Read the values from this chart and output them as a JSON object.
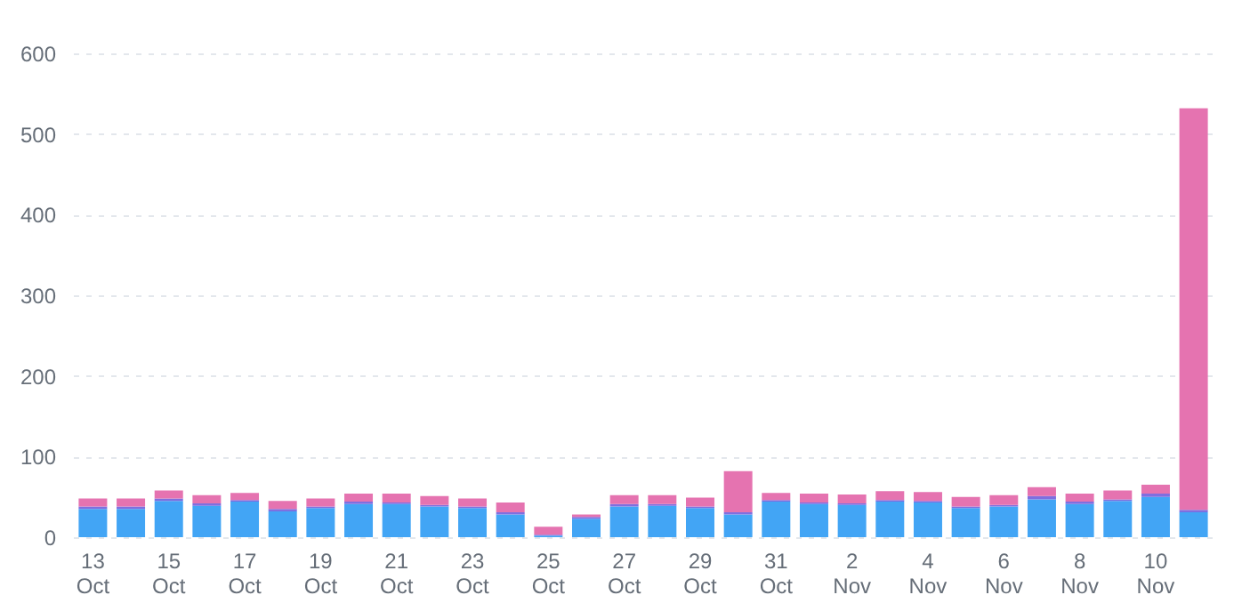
{
  "chart_data": {
    "type": "bar",
    "stacked": true,
    "grid": "y",
    "legend": false,
    "categories": [
      "13 Oct",
      null,
      "15 Oct",
      null,
      "17 Oct",
      null,
      "19 Oct",
      null,
      "21 Oct",
      null,
      "23 Oct",
      null,
      "25 Oct",
      null,
      "27 Oct",
      null,
      "29 Oct",
      null,
      "31 Oct",
      null,
      "2 Nov",
      null,
      "4 Nov",
      null,
      "6 Nov",
      null,
      "8 Nov",
      null,
      "10 Nov",
      null
    ],
    "series": [
      {
        "color": "#42a5f5",
        "values": [
          35,
          35,
          45,
          39,
          44,
          32,
          36,
          41,
          41,
          38,
          36,
          28,
          2,
          23,
          38,
          39,
          36,
          28,
          44,
          41,
          40,
          44,
          43,
          36,
          38,
          47,
          41,
          45,
          50,
          31
        ]
      },
      {
        "color": "#7e6fe0",
        "values": [
          3,
          3,
          3,
          3,
          2,
          3,
          2,
          3,
          2,
          2,
          2,
          3,
          1,
          2,
          3,
          2,
          2,
          3,
          2,
          2,
          2,
          2,
          2,
          2,
          2,
          4,
          3,
          2,
          4,
          3
        ]
      },
      {
        "color": "#e573b0",
        "values": [
          10,
          10,
          10,
          10,
          9,
          10,
          10,
          10,
          11,
          11,
          10,
          12,
          10,
          3,
          11,
          11,
          11,
          51,
          9,
          11,
          11,
          11,
          11,
          12,
          12,
          11,
          10,
          11,
          11,
          498
        ]
      }
    ],
    "ylim": [
      0,
      600
    ],
    "yticks": [
      0,
      100,
      200,
      300,
      400,
      500,
      600
    ]
  }
}
